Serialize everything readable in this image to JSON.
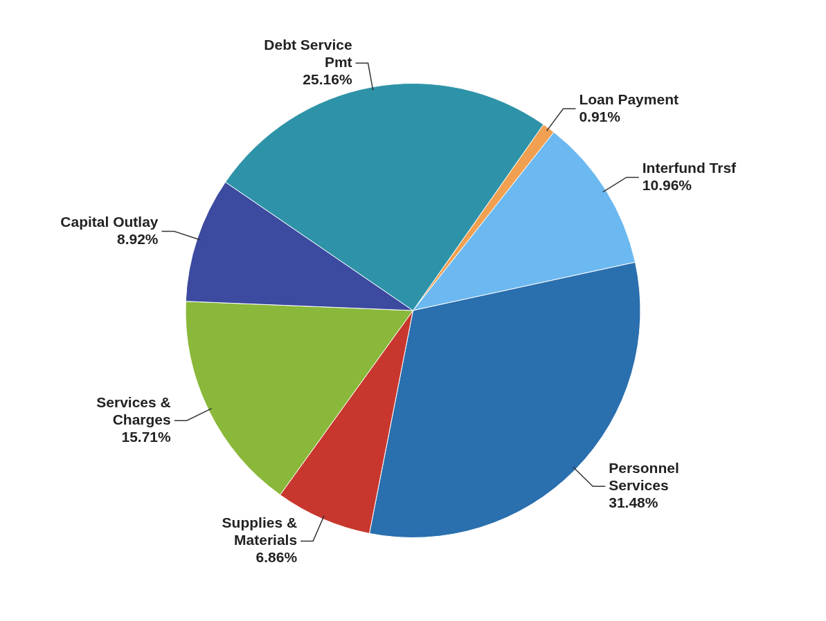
{
  "chart_data": {
    "type": "pie",
    "categories": [
      "Loan Payment",
      "Interfund Trsf",
      "Personnel Services",
      "Supplies & Materials",
      "Services & Charges",
      "Capital Outlay",
      "Debt Service Pmt"
    ],
    "values": [
      0.91,
      10.96,
      31.48,
      6.86,
      15.71,
      8.92,
      25.16
    ],
    "value_labels": [
      "0.91%",
      "10.96%",
      "31.48%",
      "6.86%",
      "15.71%",
      "8.92%",
      "25.16%"
    ],
    "colors": [
      "#f0a050",
      "#6cb8f0",
      "#2a6fae",
      "#c8372d",
      "#8ab83a",
      "#3c4aa0",
      "#2e93a8"
    ],
    "legend": false
  }
}
